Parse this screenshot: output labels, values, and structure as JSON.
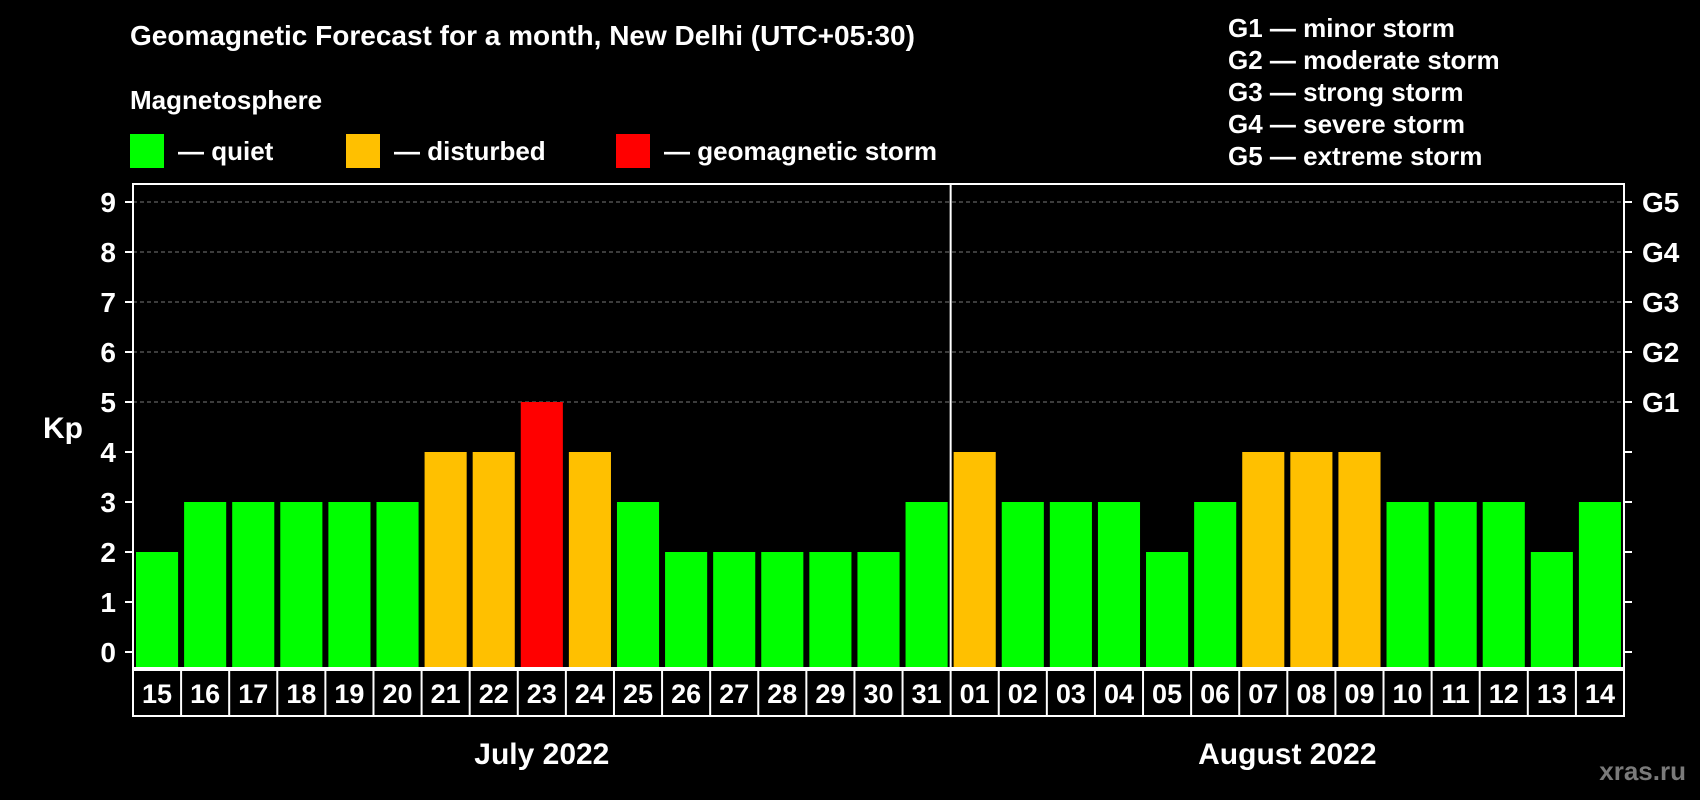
{
  "header": {
    "title": "Geomagnetic Forecast for a month, New Delhi (UTC+05:30)",
    "subtitle": "Magnetosphere"
  },
  "legend": [
    {
      "label": "— quiet",
      "color": "#00ff00"
    },
    {
      "label": "— disturbed",
      "color": "#ffc000"
    },
    {
      "label": "— geomagnetic storm",
      "color": "#ff0000"
    }
  ],
  "g_scale": [
    {
      "label": "G1 — minor storm"
    },
    {
      "label": "G2 — moderate storm"
    },
    {
      "label": "G3 — strong storm"
    },
    {
      "label": "G4 — severe storm"
    },
    {
      "label": "G5 — extreme storm"
    }
  ],
  "watermark": "xras.ru",
  "colors": {
    "quiet": "#00ff00",
    "disturbed": "#ffc000",
    "storm": "#ff0000",
    "grid": "#777777",
    "axis": "#ffffff"
  },
  "chart_data": {
    "type": "bar",
    "title": "Geomagnetic Forecast for a month, New Delhi (UTC+05:30)",
    "ylabel": "Kp",
    "ylim": [
      0,
      9
    ],
    "yticks": [
      "0",
      "1",
      "2",
      "3",
      "4",
      "5",
      "6",
      "7",
      "8",
      "9"
    ],
    "right_ticks": [
      {
        "kp": 5,
        "label": "G1"
      },
      {
        "kp": 6,
        "label": "G2"
      },
      {
        "kp": 7,
        "label": "G3"
      },
      {
        "kp": 8,
        "label": "G4"
      },
      {
        "kp": 9,
        "label": "G5"
      }
    ],
    "categories": [
      "15",
      "16",
      "17",
      "18",
      "19",
      "20",
      "21",
      "22",
      "23",
      "24",
      "25",
      "26",
      "27",
      "28",
      "29",
      "30",
      "31",
      "01",
      "02",
      "03",
      "04",
      "05",
      "06",
      "07",
      "08",
      "09",
      "10",
      "11",
      "12",
      "13",
      "14"
    ],
    "values": [
      2,
      3,
      3,
      3,
      3,
      3,
      4,
      4,
      5,
      4,
      3,
      2,
      2,
      2,
      2,
      2,
      3,
      4,
      3,
      3,
      3,
      2,
      3,
      4,
      4,
      4,
      3,
      3,
      3,
      2,
      3
    ],
    "status": [
      "quiet",
      "quiet",
      "quiet",
      "quiet",
      "quiet",
      "quiet",
      "disturbed",
      "disturbed",
      "storm",
      "disturbed",
      "quiet",
      "quiet",
      "quiet",
      "quiet",
      "quiet",
      "quiet",
      "quiet",
      "disturbed",
      "quiet",
      "quiet",
      "quiet",
      "quiet",
      "quiet",
      "disturbed",
      "disturbed",
      "disturbed",
      "quiet",
      "quiet",
      "quiet",
      "quiet",
      "quiet"
    ],
    "month_groups": [
      {
        "label": "July 2022",
        "count": 17
      },
      {
        "label": "August 2022",
        "count": 14
      }
    ],
    "grid": true
  }
}
